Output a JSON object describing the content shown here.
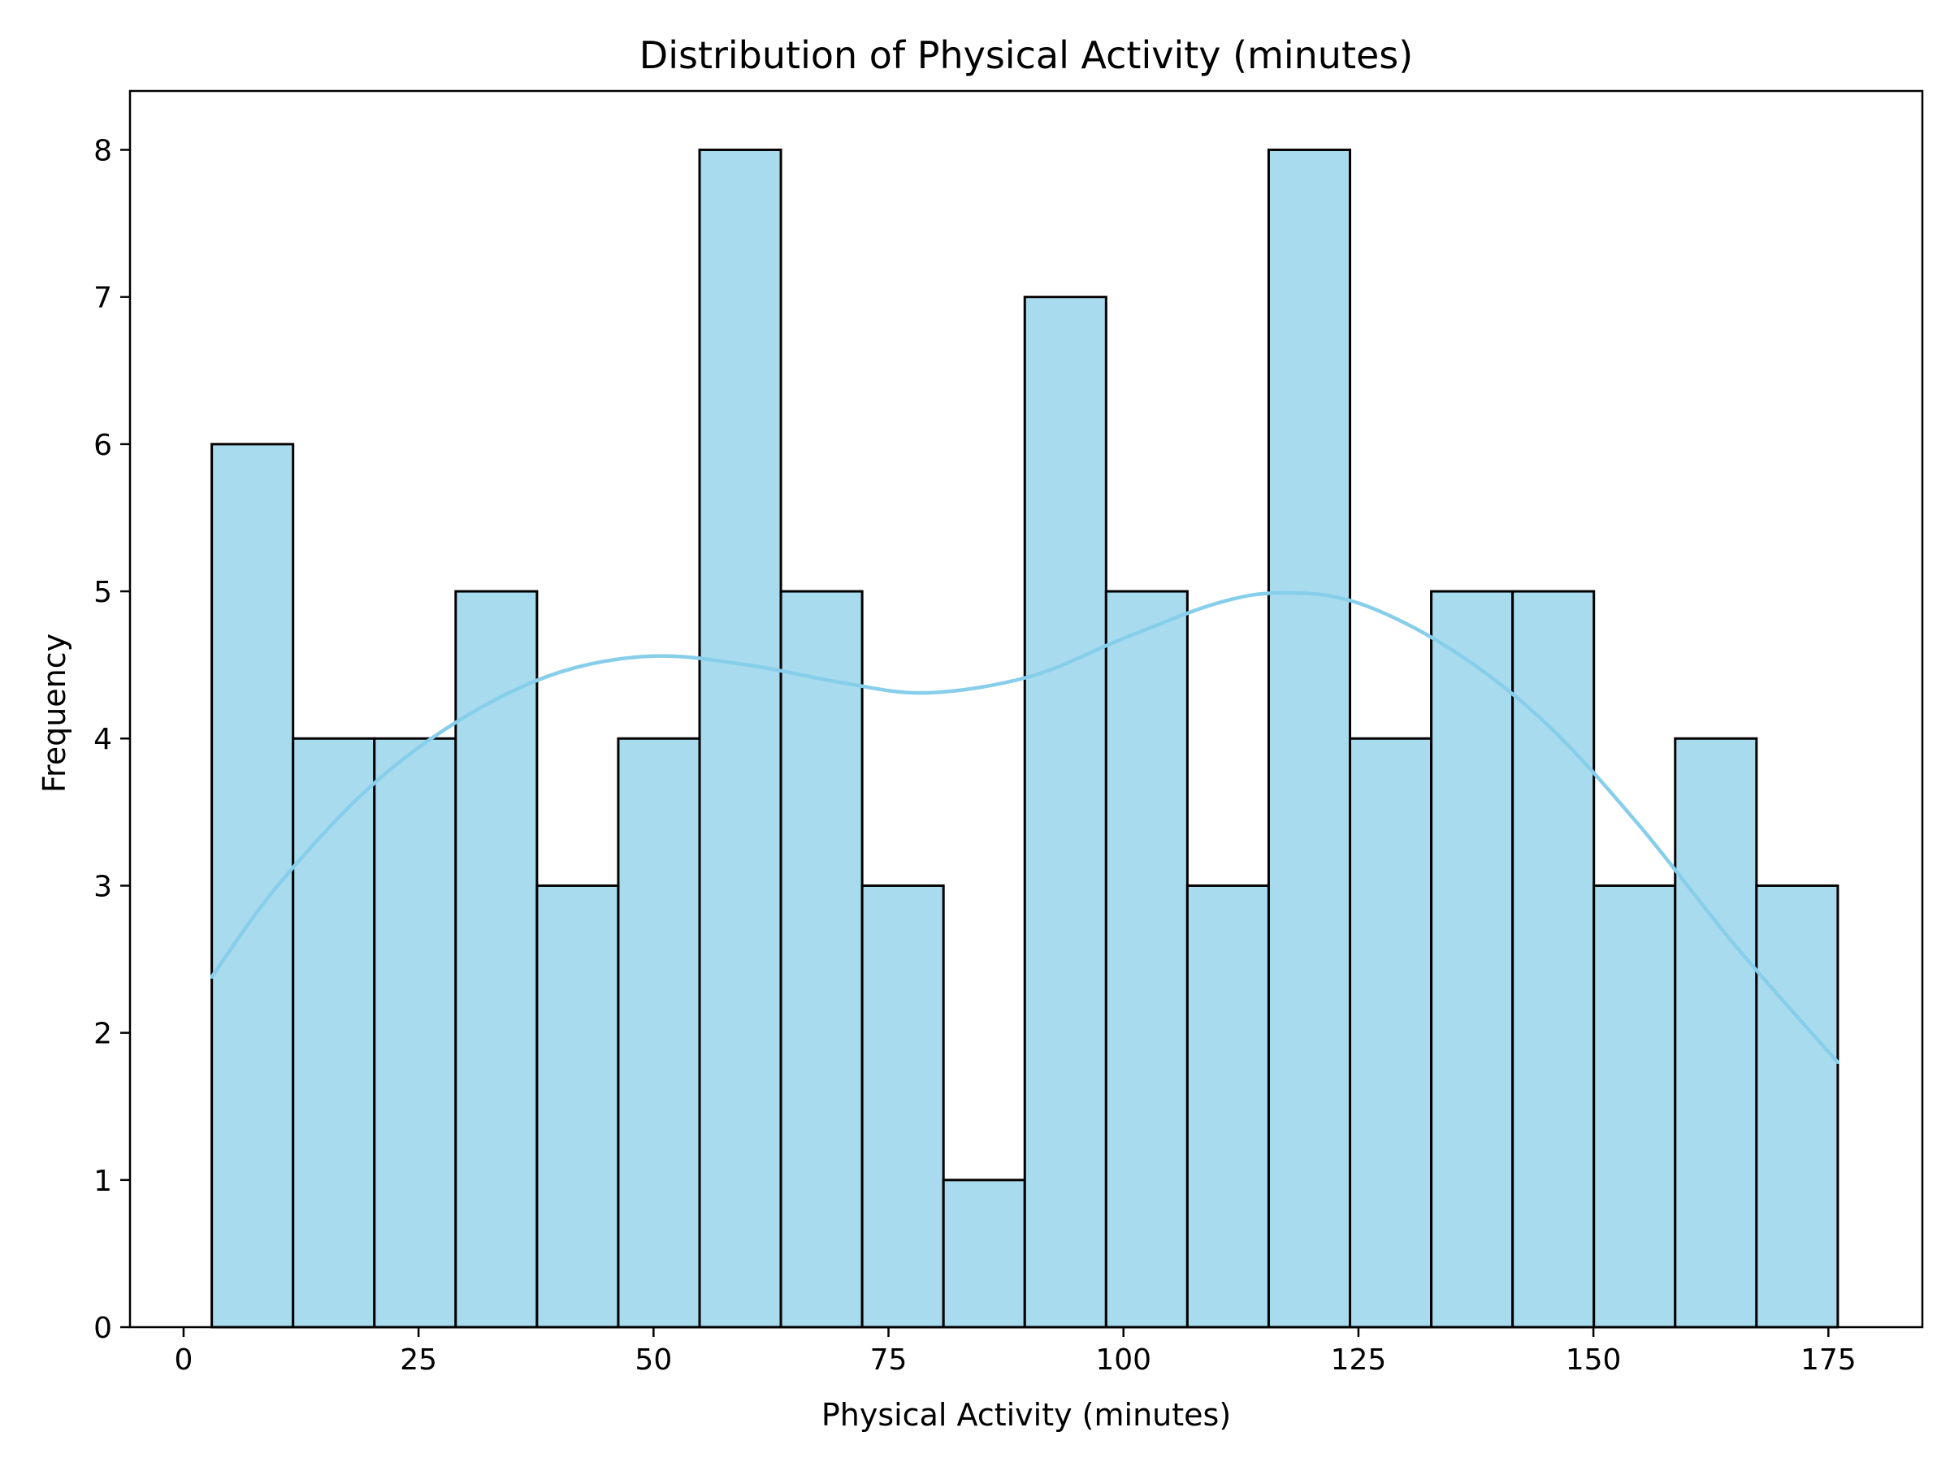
{
  "chart_data": {
    "type": "bar",
    "title": "Distribution of Physical Activity (minutes)",
    "xlabel": "Physical Activity (minutes)",
    "ylabel": "Frequency",
    "xlim": [
      -5.7,
      185.0
    ],
    "ylim": [
      0,
      8.4
    ],
    "x_ticks": [
      0,
      25,
      50,
      75,
      100,
      125,
      150,
      175
    ],
    "y_ticks": [
      0,
      1,
      2,
      3,
      4,
      5,
      6,
      7,
      8
    ],
    "grid": false,
    "bin_start": 3.0,
    "bin_width": 8.65,
    "values": [
      6,
      4,
      4,
      5,
      3,
      4,
      8,
      5,
      3,
      1,
      7,
      5,
      3,
      8,
      4,
      5,
      5,
      3,
      4,
      3
    ],
    "bar_color": "#a8dbee",
    "edge_color": "#000000",
    "kde": {
      "color": "#87ceeb",
      "points": [
        [
          3,
          2.38
        ],
        [
          10,
          3.0
        ],
        [
          20,
          3.68
        ],
        [
          30,
          4.15
        ],
        [
          40,
          4.45
        ],
        [
          50,
          4.56
        ],
        [
          60,
          4.5
        ],
        [
          70,
          4.38
        ],
        [
          79,
          4.31
        ],
        [
          90,
          4.42
        ],
        [
          100,
          4.68
        ],
        [
          110,
          4.92
        ],
        [
          117,
          4.99
        ],
        [
          125,
          4.92
        ],
        [
          135,
          4.6
        ],
        [
          145,
          4.1
        ],
        [
          155,
          3.4
        ],
        [
          165,
          2.6
        ],
        [
          176,
          1.8
        ]
      ]
    }
  }
}
